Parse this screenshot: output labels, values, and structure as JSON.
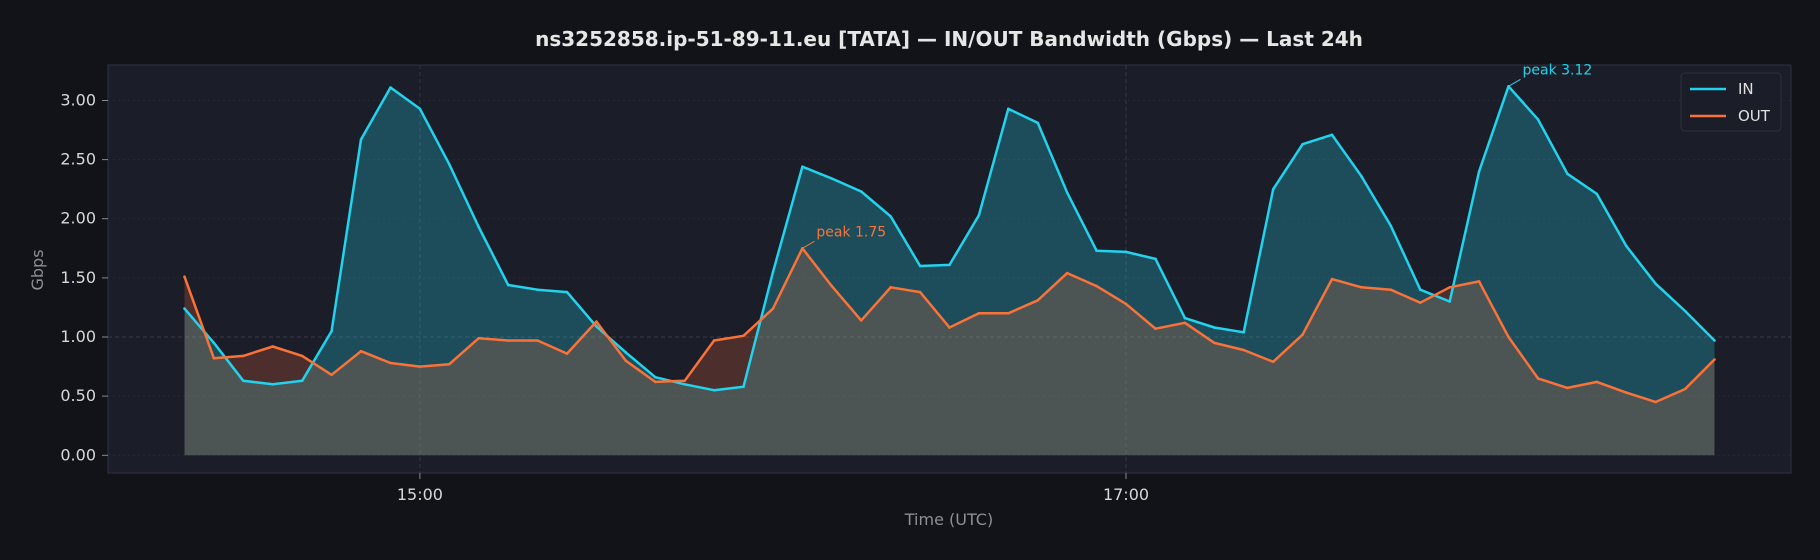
{
  "chart_data": {
    "type": "area",
    "title": "ns3252858.ip-51-89-11.eu [TATA] — IN/OUT Bandwidth (Gbps) — Last 24h",
    "xlabel": "Time (UTC)",
    "ylabel": "Gbps",
    "ylim": [
      -0.15,
      3.3
    ],
    "xlim": [
      "14:07",
      "18:53"
    ],
    "yticks": [
      0,
      0.5,
      1,
      1.5,
      2,
      2.5,
      3
    ],
    "ytick_labels": [
      "0.00",
      "0.50",
      "1.00",
      "1.50",
      "2.00",
      "2.50",
      "3.00"
    ],
    "xticks": [
      "15:00",
      "17:00"
    ],
    "grid": true,
    "legend_position": "top-right",
    "x": [
      "14:20",
      "14:25",
      "14:30",
      "14:35",
      "14:40",
      "14:45",
      "14:50",
      "14:55",
      "15:00",
      "15:05",
      "15:10",
      "15:15",
      "15:20",
      "15:25",
      "15:30",
      "15:35",
      "15:40",
      "15:45",
      "15:50",
      "15:55",
      "16:00",
      "16:05",
      "16:10",
      "16:15",
      "16:20",
      "16:25",
      "16:30",
      "16:35",
      "16:40",
      "16:45",
      "16:50",
      "16:55",
      "17:00",
      "17:05",
      "17:10",
      "17:15",
      "17:20",
      "17:25",
      "17:30",
      "17:35",
      "17:40",
      "17:45",
      "17:50",
      "17:55",
      "18:00",
      "18:05",
      "18:10",
      "18:15",
      "18:20",
      "18:25",
      "18:30",
      "18:35",
      "18:40"
    ],
    "series": [
      {
        "name": "IN",
        "color": "#22d3ee",
        "values": [
          1.24,
          0.95,
          0.63,
          0.6,
          0.63,
          1.05,
          2.67,
          3.11,
          2.93,
          2.46,
          1.93,
          1.44,
          1.4,
          1.38,
          1.09,
          0.87,
          0.66,
          0.6,
          0.55,
          0.58,
          1.55,
          2.44,
          2.34,
          2.23,
          2.02,
          1.6,
          1.61,
          2.03,
          2.93,
          2.81,
          2.22,
          1.73,
          1.72,
          1.66,
          1.16,
          1.08,
          1.04,
          2.25,
          2.63,
          2.71,
          2.36,
          1.94,
          1.4,
          1.3,
          2.4,
          3.12,
          2.84,
          2.38,
          2.21,
          1.77,
          1.45,
          1.22,
          0.97
        ]
      },
      {
        "name": "OUT",
        "color": "#f97339",
        "values": [
          1.51,
          0.82,
          0.84,
          0.92,
          0.84,
          0.68,
          0.88,
          0.78,
          0.75,
          0.77,
          0.99,
          0.97,
          0.97,
          0.86,
          1.13,
          0.8,
          0.62,
          0.63,
          0.97,
          1.01,
          1.24,
          1.75,
          1.43,
          1.14,
          1.42,
          1.38,
          1.08,
          1.2,
          1.2,
          1.31,
          1.54,
          1.43,
          1.28,
          1.07,
          1.12,
          0.95,
          0.89,
          0.79,
          1.02,
          1.49,
          1.42,
          1.4,
          1.29,
          1.42,
          1.47,
          1.0,
          0.65,
          0.57,
          0.62,
          0.53,
          0.45,
          0.56,
          0.81
        ]
      }
    ],
    "annotations": [
      {
        "text": "peak 3.12",
        "x": "18:05",
        "y": 3.12,
        "series": "IN"
      },
      {
        "text": "peak 1.75",
        "x": "16:05",
        "y": 1.75,
        "series": "OUT"
      }
    ],
    "colors": {
      "page_bg": "#111318",
      "plot_bg": "#1b1d28",
      "grid": "#2a2d38",
      "in": "#22d3ee",
      "out": "#f97339"
    }
  }
}
